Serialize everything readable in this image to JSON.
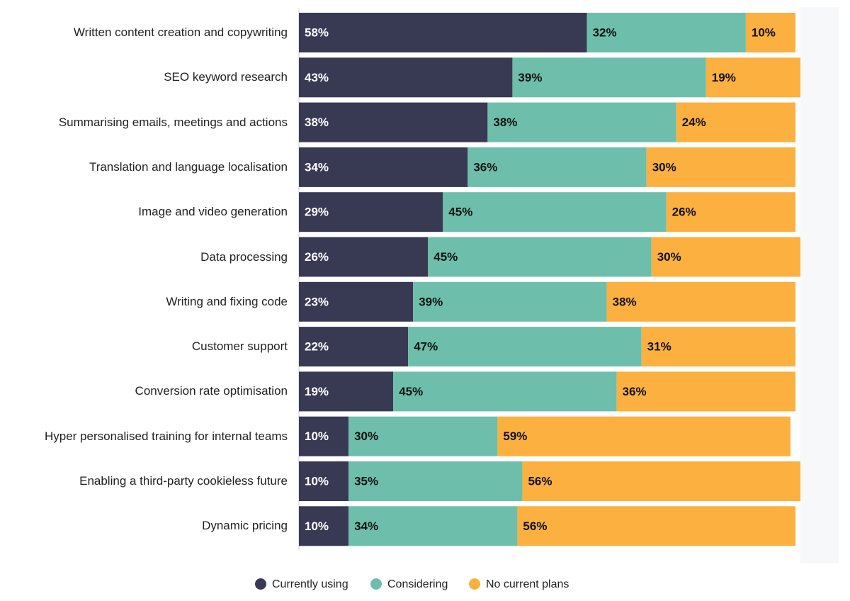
{
  "chart_data": {
    "type": "stacked_bar_horizontal",
    "categories": [
      "Written content creation and copywriting",
      "SEO keyword research",
      "Summarising emails, meetings and actions",
      "Translation and language localisation",
      "Image and video generation",
      "Data processing",
      "Writing and fixing code",
      "Customer support",
      "Conversion rate optimisation",
      "Hyper personalised training for internal teams",
      "Enabling a third-party cookieless future",
      "Dynamic pricing"
    ],
    "series": [
      {
        "name": "Currently using",
        "color": "#383a54",
        "values": [
          58,
          43,
          38,
          34,
          29,
          26,
          23,
          22,
          19,
          10,
          10,
          10
        ],
        "value_labels": [
          "58%",
          "43%",
          "38%",
          "34%",
          "29%",
          "26%",
          "23%",
          "22%",
          "19%",
          "10%",
          "10%",
          "10%"
        ]
      },
      {
        "name": "Considering",
        "color": "#6dbfab",
        "values": [
          32,
          39,
          38,
          36,
          45,
          45,
          39,
          47,
          45,
          30,
          35,
          34
        ],
        "value_labels": [
          "32%",
          "39%",
          "38%",
          "36%",
          "45%",
          "45%",
          "39%",
          "47%",
          "45%",
          "30%",
          "35%",
          "34%"
        ]
      },
      {
        "name": "No current plans",
        "color": "#fbb040",
        "values": [
          10,
          19,
          24,
          30,
          26,
          30,
          38,
          31,
          36,
          59,
          56,
          56
        ],
        "value_labels": [
          "10%",
          "19%",
          "24%",
          "30%",
          "26%",
          "30%",
          "38%",
          "31%",
          "36%",
          "59%",
          "56%",
          "56%"
        ]
      }
    ],
    "legend": "bottom"
  }
}
